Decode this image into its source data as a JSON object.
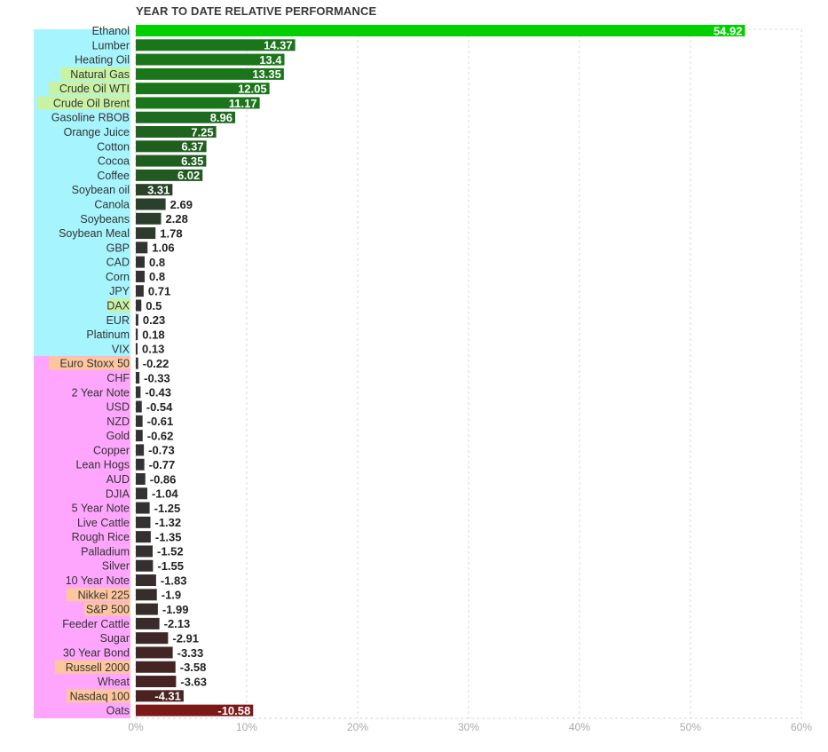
{
  "chart_data": {
    "type": "bar",
    "orientation": "horizontal",
    "title": "YEAR TO DATE RELATIVE PERFORMANCE",
    "xlabel": "",
    "ylabel": "",
    "xlim": [
      -0.12,
      0.6
    ],
    "x_ticks": [
      "0%",
      "10%",
      "20%",
      "30%",
      "40%",
      "50%",
      "60%"
    ],
    "x_tick_values": [
      0,
      0.1,
      0.2,
      0.3,
      0.4,
      0.5,
      0.6
    ],
    "grid": true,
    "legend": "none",
    "colors": {
      "positive_group": "#a6f4fd",
      "negative_group": "#fea6fd",
      "highlight_green": "#c9f2a3",
      "highlight_orange": "#fdc69e",
      "bar_top": "#00d000",
      "bar_green": "#1b761b",
      "bar_dark": "#333333",
      "bar_neg": "#5b1c1c",
      "bar_bottom": "#7c1818"
    },
    "items": [
      {
        "label": "Ethanol",
        "value": 54.92,
        "highlight": "none",
        "color": "#00d000"
      },
      {
        "label": "Lumber",
        "value": 14.37,
        "highlight": "none",
        "color": "#1b761b"
      },
      {
        "label": "Heating Oil",
        "value": 13.4,
        "highlight": "none",
        "color": "#1b761b"
      },
      {
        "label": "Natural Gas",
        "value": 13.35,
        "highlight": "green",
        "color": "#1b761b"
      },
      {
        "label": "Crude Oil WTI",
        "value": 12.05,
        "highlight": "green",
        "color": "#1b761b"
      },
      {
        "label": "Crude Oil Brent",
        "value": 11.17,
        "highlight": "green",
        "color": "#1b761b"
      },
      {
        "label": "Gasoline RBOB",
        "value": 8.96,
        "highlight": "none",
        "color": "#1e6a1e"
      },
      {
        "label": "Orange Juice",
        "value": 7.25,
        "highlight": "none",
        "color": "#1f631f"
      },
      {
        "label": "Cotton",
        "value": 6.37,
        "highlight": "none",
        "color": "#205e20"
      },
      {
        "label": "Cocoa",
        "value": 6.35,
        "highlight": "none",
        "color": "#205e20"
      },
      {
        "label": "Coffee",
        "value": 6.02,
        "highlight": "none",
        "color": "#225a22"
      },
      {
        "label": "Soybean oil",
        "value": 3.31,
        "highlight": "none",
        "color": "#284428"
      },
      {
        "label": "Canola",
        "value": 2.69,
        "highlight": "none",
        "color": "#2a402a"
      },
      {
        "label": "Soybeans",
        "value": 2.28,
        "highlight": "none",
        "color": "#2c3d2c"
      },
      {
        "label": "Soybean Meal",
        "value": 1.78,
        "highlight": "none",
        "color": "#2e3a2e"
      },
      {
        "label": "GBP",
        "value": 1.06,
        "highlight": "none",
        "color": "#313631"
      },
      {
        "label": "CAD",
        "value": 0.8,
        "highlight": "none",
        "color": "#333333"
      },
      {
        "label": "Corn",
        "value": 0.8,
        "highlight": "none",
        "color": "#333333"
      },
      {
        "label": "JPY",
        "value": 0.71,
        "highlight": "none",
        "color": "#333333"
      },
      {
        "label": "DAX",
        "value": 0.5,
        "highlight": "green",
        "color": "#333333"
      },
      {
        "label": "EUR",
        "value": 0.23,
        "highlight": "none",
        "color": "#333333"
      },
      {
        "label": "Platinum",
        "value": 0.18,
        "highlight": "none",
        "color": "#333333"
      },
      {
        "label": "VIX",
        "value": 0.13,
        "highlight": "none",
        "color": "#333333"
      },
      {
        "label": "Euro Stoxx 50",
        "value": -0.22,
        "highlight": "orange",
        "color": "#333333"
      },
      {
        "label": "CHF",
        "value": -0.33,
        "highlight": "none",
        "color": "#333333"
      },
      {
        "label": "2 Year Note",
        "value": -0.43,
        "highlight": "none",
        "color": "#333333"
      },
      {
        "label": "USD",
        "value": -0.54,
        "highlight": "none",
        "color": "#333333"
      },
      {
        "label": "NZD",
        "value": -0.61,
        "highlight": "none",
        "color": "#333333"
      },
      {
        "label": "Gold",
        "value": -0.62,
        "highlight": "none",
        "color": "#333333"
      },
      {
        "label": "Copper",
        "value": -0.73,
        "highlight": "none",
        "color": "#333333"
      },
      {
        "label": "Lean Hogs",
        "value": -0.77,
        "highlight": "none",
        "color": "#333333"
      },
      {
        "label": "AUD",
        "value": -0.86,
        "highlight": "none",
        "color": "#333333"
      },
      {
        "label": "DJIA",
        "value": -1.04,
        "highlight": "none",
        "color": "#333333"
      },
      {
        "label": "5 Year Note",
        "value": -1.25,
        "highlight": "none",
        "color": "#343131"
      },
      {
        "label": "Live Cattle",
        "value": -1.32,
        "highlight": "none",
        "color": "#343131"
      },
      {
        "label": "Rough Rice",
        "value": -1.35,
        "highlight": "none",
        "color": "#353030"
      },
      {
        "label": "Palladium",
        "value": -1.52,
        "highlight": "none",
        "color": "#362f2f"
      },
      {
        "label": "Silver",
        "value": -1.55,
        "highlight": "none",
        "color": "#362f2f"
      },
      {
        "label": "10 Year Note",
        "value": -1.83,
        "highlight": "none",
        "color": "#382d2d"
      },
      {
        "label": "Nikkei 225",
        "value": -1.9,
        "highlight": "orange",
        "color": "#382d2d"
      },
      {
        "label": "S&P 500",
        "value": -1.99,
        "highlight": "orange",
        "color": "#392c2c"
      },
      {
        "label": "Feeder Cattle",
        "value": -2.13,
        "highlight": "none",
        "color": "#3a2b2b"
      },
      {
        "label": "Sugar",
        "value": -2.91,
        "highlight": "none",
        "color": "#402727"
      },
      {
        "label": "30 Year Bond",
        "value": -3.33,
        "highlight": "none",
        "color": "#432525"
      },
      {
        "label": "Russell 2000",
        "value": -3.58,
        "highlight": "orange",
        "color": "#452424"
      },
      {
        "label": "Wheat",
        "value": -3.63,
        "highlight": "none",
        "color": "#462323"
      },
      {
        "label": "Nasdaq 100",
        "value": -4.31,
        "highlight": "orange",
        "color": "#4b2121"
      },
      {
        "label": "Oats",
        "value": -10.58,
        "highlight": "none",
        "color": "#7c1818"
      }
    ]
  }
}
